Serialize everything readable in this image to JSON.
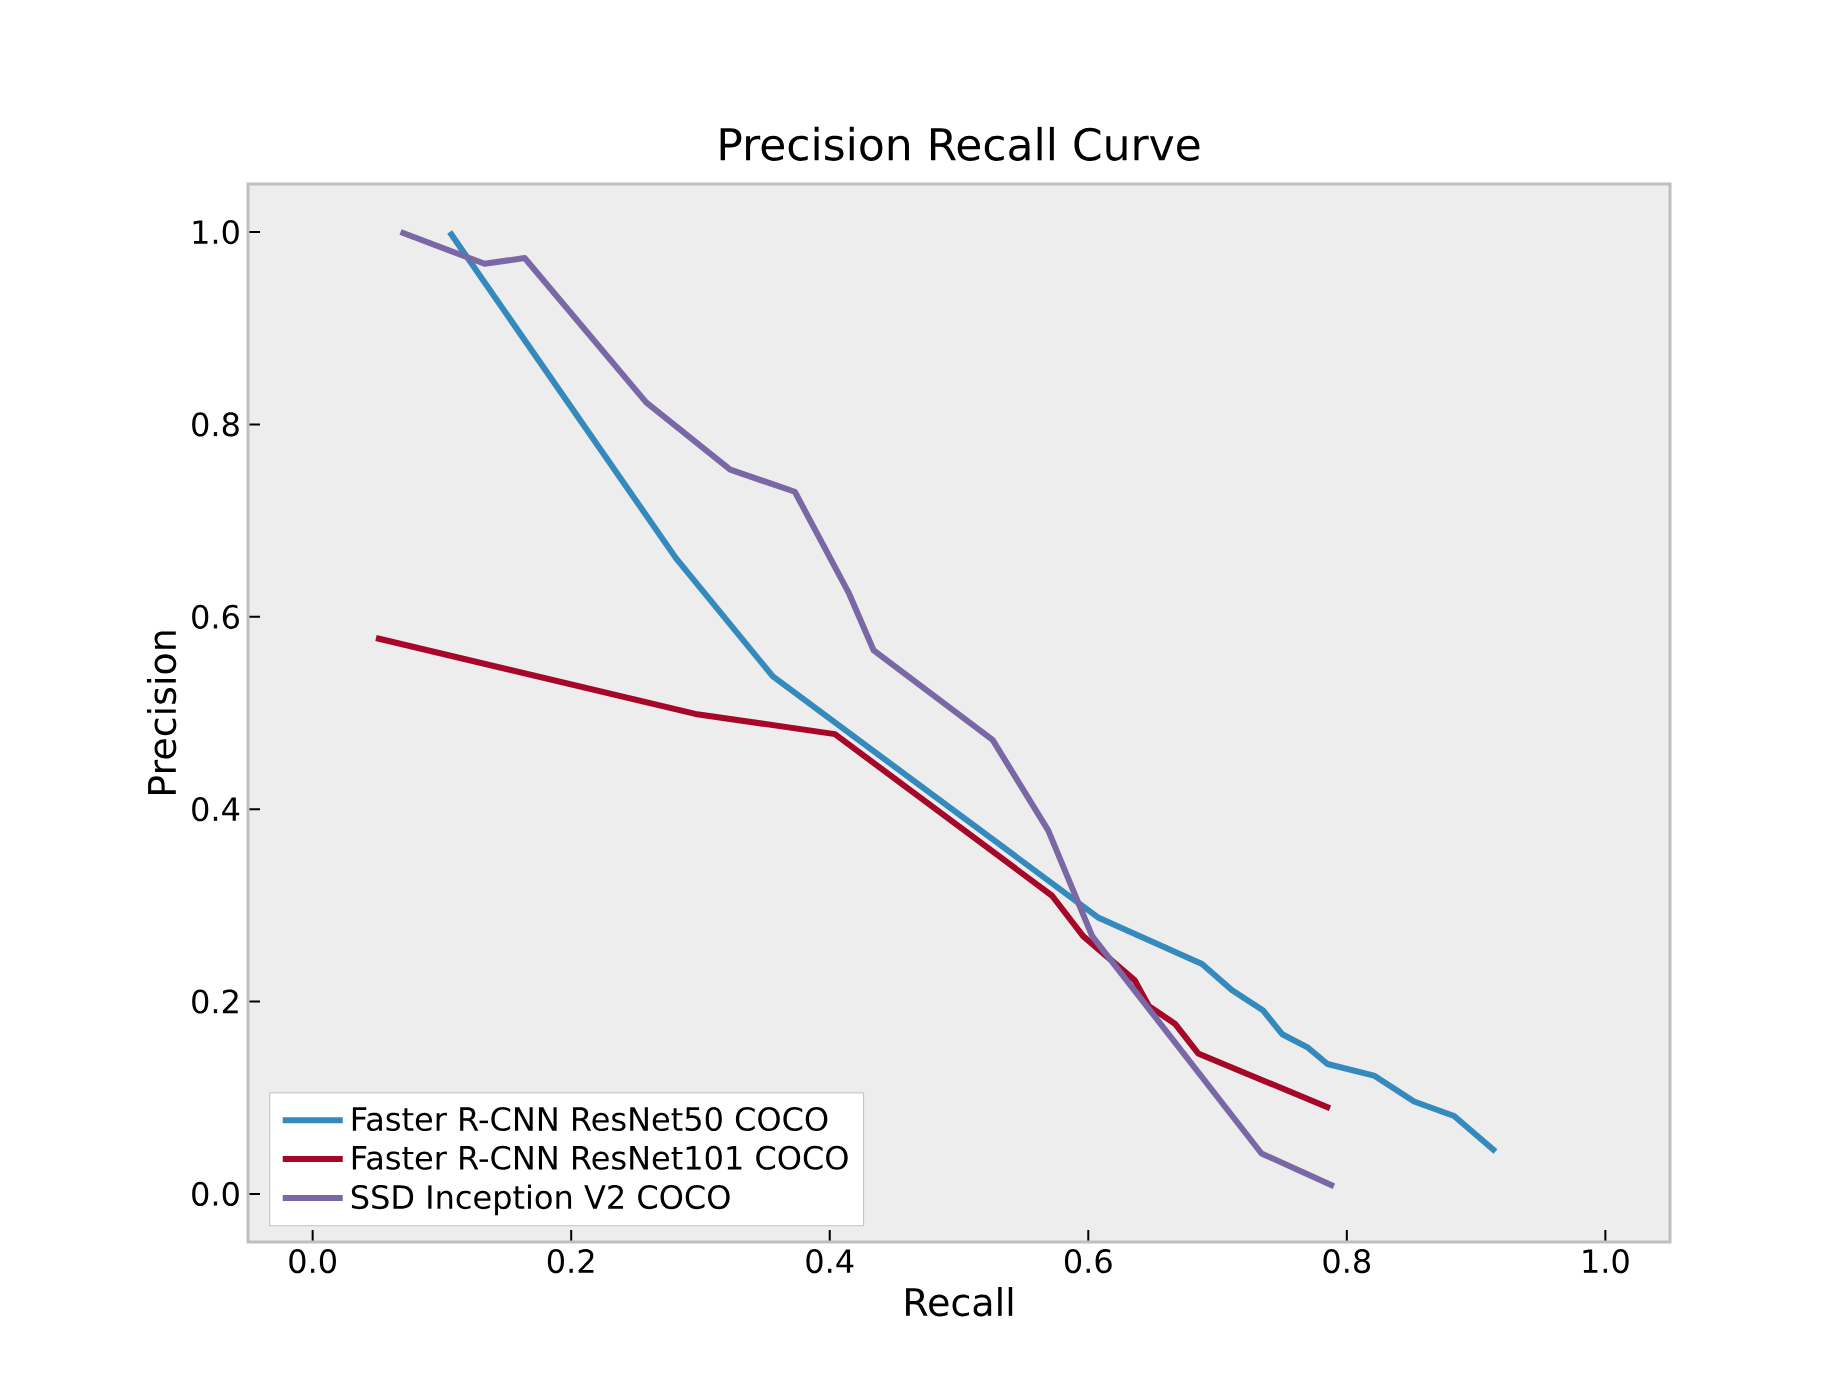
{
  "chart_data": {
    "type": "line",
    "title": "Precision Recall Curve",
    "xlabel": "Recall",
    "ylabel": "Precision",
    "xlim": [
      -0.05,
      1.05
    ],
    "ylim": [
      -0.05,
      1.05
    ],
    "xticks": [
      {
        "value": 0,
        "label": "0.0"
      },
      0.2,
      0.4,
      0.6,
      0.8,
      {
        "value": 1,
        "label": "1.0"
      }
    ],
    "yticks": [
      {
        "value": 0,
        "label": "0.0"
      },
      0.2,
      0.4,
      0.6,
      0.8,
      {
        "value": 1,
        "label": "1.0"
      }
    ],
    "grid": false,
    "legend": "bottom left",
    "marker": "none",
    "line_style": "solid",
    "series": [
      {
        "name": "Faster R-CNN ResNet50 COCO",
        "color": "#348abd",
        "x": [
          0.106,
          0.281,
          0.356,
          0.608,
          0.688,
          0.711,
          0.735,
          0.75,
          0.77,
          0.785,
          0.821,
          0.852,
          0.883,
          0.915
        ],
        "values": [
          1.0,
          0.661,
          0.538,
          0.287,
          0.239,
          0.212,
          0.191,
          0.166,
          0.152,
          0.135,
          0.123,
          0.096,
          0.081,
          0.044
        ]
      },
      {
        "name": "Faster R-CNN ResNet101 COCO",
        "color": "#a60628",
        "x": [
          0.049,
          0.296,
          0.404,
          0.572,
          0.596,
          0.636,
          0.647,
          0.667,
          0.685,
          0.787
        ],
        "values": [
          0.578,
          0.499,
          0.478,
          0.31,
          0.268,
          0.222,
          0.195,
          0.177,
          0.146,
          0.089
        ]
      },
      {
        "name": "SSD Inception V2 COCO",
        "color": "#7a68a6",
        "x": [
          0.068,
          0.133,
          0.164,
          0.258,
          0.323,
          0.373,
          0.415,
          0.434,
          0.526,
          0.569,
          0.603,
          0.734,
          0.79
        ],
        "values": [
          1.0,
          0.967,
          0.973,
          0.823,
          0.753,
          0.73,
          0.624,
          0.565,
          0.472,
          0.378,
          0.268,
          0.042,
          0.008
        ]
      }
    ]
  }
}
